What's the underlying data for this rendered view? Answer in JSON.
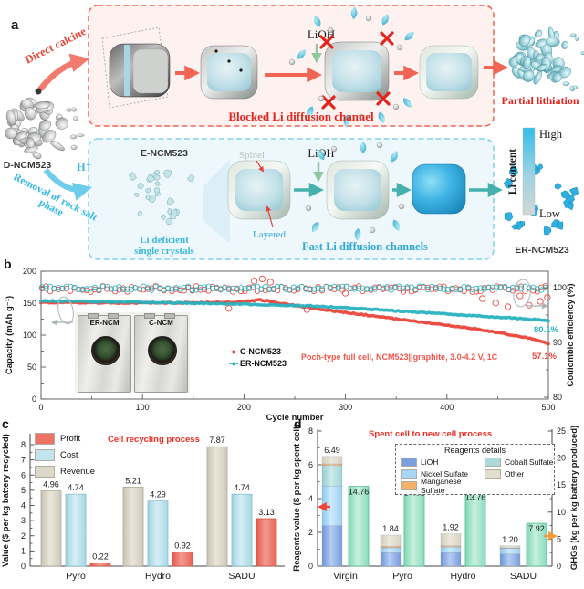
{
  "panels": {
    "a": "a",
    "b": "b",
    "c": "c",
    "d": "d"
  },
  "panel_a": {
    "direct_calcine": "Direct calcine",
    "d_ncm523": "D-NCM523",
    "h_plus": "H⁺",
    "removal_line1": "Removal of rock salt",
    "removal_line2": "phase",
    "lioh_top": "LiOH",
    "blocked_caption": "Blocked Li diffusion channel",
    "partial_lithiation": "Partial lithiation",
    "e_ncm523": "E-NCM523",
    "spinel": "Spinel",
    "layered": "Layered",
    "lioh_bottom": "LiOH",
    "li_deficient_1": "Li deficient",
    "li_deficient_2": "single crystals",
    "fast_caption": "Fast Li diffusion channels",
    "er_ncm523": "ER-NCM523",
    "colorbar": {
      "title": "Li content",
      "high": "High",
      "low": "Low"
    }
  },
  "chart_data": [
    {
      "panel": "b",
      "type": "scatter",
      "xlabel": "Cycle number",
      "ylabel_left": "Capacity  (mAh g⁻¹)",
      "ylabel_right": "Coulombic efficiency (%)",
      "xlim": [
        0,
        500
      ],
      "ylim_left": [
        0,
        200
      ],
      "ylim_right": [
        80,
        100
      ],
      "xticks": [
        0,
        100,
        200,
        300,
        400,
        500
      ],
      "yticks_left": [
        0,
        50,
        100,
        150,
        200
      ],
      "yticks_right": [
        80,
        90,
        100
      ],
      "legend_marker": "-●-",
      "inset_labels": [
        "ER-NCM",
        "C-NCM"
      ],
      "series": [
        {
          "name": "C-NCM523",
          "color": "#e8463c",
          "role": "capacity",
          "keypoints": [
            [
              0,
              151.5
            ],
            [
              40,
              151
            ],
            [
              80,
              150.5
            ],
            [
              120,
              150.5
            ],
            [
              160,
              151
            ],
            [
              190,
              151.5
            ],
            [
              205,
              153
            ],
            [
              215,
              155.5
            ],
            [
              225,
              153
            ],
            [
              235,
              150
            ],
            [
              245,
              147.5
            ],
            [
              255,
              145.5
            ],
            [
              270,
              142
            ],
            [
              290,
              137.5
            ],
            [
              310,
              133.5
            ],
            [
              330,
              129.5
            ],
            [
              350,
              125.5
            ],
            [
              370,
              121.5
            ],
            [
              390,
              117.5
            ],
            [
              410,
              113.5
            ],
            [
              430,
              109
            ],
            [
              450,
              104
            ],
            [
              470,
              98.5
            ],
            [
              485,
              93.5
            ],
            [
              500,
              87
            ]
          ]
        },
        {
          "name": "ER-NCM523",
          "color": "#2ab3bf",
          "role": "capacity",
          "keypoints": [
            [
              0,
              153.5
            ],
            [
              50,
              152.5
            ],
            [
              100,
              151.5
            ],
            [
              150,
              150
            ],
            [
              200,
              148.5
            ],
            [
              250,
              146.5
            ],
            [
              275,
              145
            ],
            [
              300,
              143
            ],
            [
              325,
              140.5
            ],
            [
              350,
              138
            ],
            [
              375,
              135.5
            ],
            [
              400,
              133
            ],
            [
              425,
              130.5
            ],
            [
              450,
              128
            ],
            [
              475,
              125.5
            ],
            [
              500,
              123
            ]
          ]
        },
        {
          "name": "C-NCM523 efficiency",
          "color": "#e8463c",
          "role": "efficiency",
          "baseline": 99.75,
          "amp": 0.55,
          "outliers": [
            [
              185,
              96.2
            ],
            [
              210,
              101.2
            ],
            [
              218,
              101.6
            ],
            [
              226,
              101.0
            ],
            [
              262,
              96.0
            ],
            [
              300,
              99.0
            ],
            [
              435,
              98.0
            ],
            [
              448,
              97.2
            ],
            [
              460,
              96.5
            ],
            [
              472,
              98.5
            ],
            [
              481,
              96.8
            ],
            [
              492,
              97.5
            ],
            [
              499,
              98.2
            ]
          ]
        },
        {
          "name": "ER-NCM523 efficiency",
          "color": "#2ab3bf",
          "role": "efficiency",
          "baseline": 99.9,
          "amp": 0.35,
          "outliers": []
        }
      ],
      "annotations": {
        "condition": "Poch-type full cell, NCM523||graphite, 3.0-4.2 V, 1C",
        "retention_er": "80.1%",
        "retention_c": "57.1%"
      }
    },
    {
      "panel": "c",
      "type": "bar",
      "title": "Cell recycling process",
      "ylabel": "Value ($ per kg battery recycled)",
      "ylim": [
        0,
        8
      ],
      "yticks": [
        0,
        1,
        2,
        3,
        4,
        5,
        6,
        7,
        8
      ],
      "categories": [
        "Pyro",
        "Hydro",
        "SADU"
      ],
      "series": [
        {
          "name": "Revenue",
          "color": "#ddd8c9",
          "values": [
            4.96,
            5.21,
            7.87
          ]
        },
        {
          "name": "Cost",
          "color": "#c3e4ed",
          "values": [
            4.74,
            4.29,
            4.74
          ]
        },
        {
          "name": "Profit",
          "color": "#ec7265",
          "values": [
            0.22,
            0.92,
            3.13
          ]
        }
      ],
      "legend_order": [
        "Profit",
        "Cost",
        "Revenue"
      ]
    },
    {
      "panel": "d",
      "type": "stacked-bar+bar",
      "title": "Spent cell to new cell process",
      "legend_title": "Reagents details",
      "ylabel_left": "Reagents value ($ per kg spent cell)",
      "ylabel_right": "GHGs (kg per kg battery produced)",
      "ylim_left": [
        0,
        8
      ],
      "ylim_right": [
        0,
        25
      ],
      "yticks_left": [
        0,
        2,
        4,
        6,
        8
      ],
      "yticks_right": [
        0,
        5,
        10,
        15,
        20,
        25
      ],
      "categories": [
        "Virgin",
        "Pyro",
        "Hydro",
        "SADU"
      ],
      "stacked_series": [
        {
          "name": "LiOH",
          "color": "#7d9ede",
          "values": [
            2.4,
            0.8,
            0.8,
            0.72
          ]
        },
        {
          "name": "Nickel Sulfate",
          "color": "#a9d6f5",
          "values": [
            2.35,
            0.28,
            0.32,
            0.33
          ]
        },
        {
          "name": "Cobalt Sulfate",
          "color": "#aed9da",
          "values": [
            1.2,
            0.02,
            0.02,
            0.02
          ]
        },
        {
          "name": "Manganese Sulfate",
          "color": "#f6b26b",
          "values": [
            0.1,
            0.08,
            0.06,
            0.01
          ]
        },
        {
          "name": "Other",
          "color": "#e2ddcf",
          "values": [
            0.44,
            0.66,
            0.72,
            0.12
          ]
        }
      ],
      "stacked_totals": [
        6.49,
        1.84,
        1.92,
        1.2
      ],
      "ghg_series": {
        "name": "GHGs",
        "color": "#9fe3c6",
        "values": [
          14.76,
          14.61,
          13.76,
          7.92
        ]
      }
    }
  ]
}
